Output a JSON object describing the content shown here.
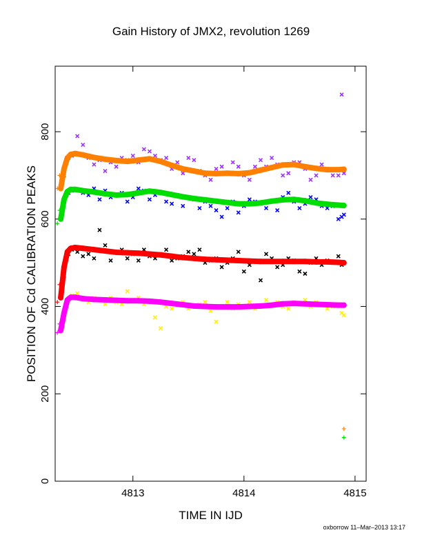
{
  "chart_data": {
    "type": "scatter",
    "title": "Gain History of JMX2, revolution 1269",
    "xlabel": "TIME IN IJD",
    "ylabel": "POSITION OF Cd CALIBRATION PEAKS",
    "xlim": [
      4812.3,
      4815.1
    ],
    "ylim": [
      0,
      950
    ],
    "x_ticks": [
      4813,
      4814,
      4815
    ],
    "y_ticks": [
      0,
      200,
      400,
      600,
      800
    ],
    "grid": false,
    "footer": "oxborrow 11–Mar–2013 13:17",
    "series": [
      {
        "marker": "x",
        "color": "#9933ff",
        "x": [
          4812.38,
          4812.42,
          4812.45,
          4812.5,
          4812.55,
          4812.6,
          4812.65,
          4812.7,
          4812.75,
          4812.8,
          4812.85,
          4812.9,
          4812.95,
          4813.0,
          4813.05,
          4813.1,
          4813.15,
          4813.2,
          4813.25,
          4813.3,
          4813.35,
          4813.4,
          4813.45,
          4813.5,
          4813.55,
          4813.6,
          4813.65,
          4813.7,
          4813.75,
          4813.8,
          4813.85,
          4813.9,
          4813.95,
          4814.0,
          4814.05,
          4814.1,
          4814.15,
          4814.2,
          4814.25,
          4814.3,
          4814.35,
          4814.4,
          4814.45,
          4814.5,
          4814.55,
          4814.6,
          4814.65,
          4814.7,
          4814.75,
          4814.8,
          4814.85,
          4814.88,
          4814.9
        ],
        "y": [
          700,
          740,
          745,
          790,
          770,
          740,
          725,
          735,
          710,
          730,
          720,
          740,
          735,
          745,
          730,
          760,
          755,
          745,
          735,
          740,
          715,
          730,
          705,
          740,
          735,
          710,
          700,
          690,
          715,
          720,
          705,
          730,
          720,
          700,
          690,
          720,
          735,
          720,
          740,
          725,
          700,
          705,
          730,
          730,
          715,
          690,
          700,
          725,
          715,
          700,
          700,
          885,
          705
        ]
      },
      {
        "marker": "x",
        "color": "#0000ff",
        "x": [
          4812.38,
          4812.42,
          4812.45,
          4812.5,
          4812.55,
          4812.6,
          4812.65,
          4812.7,
          4812.75,
          4812.8,
          4812.85,
          4812.9,
          4812.95,
          4813.0,
          4813.05,
          4813.1,
          4813.15,
          4813.2,
          4813.25,
          4813.3,
          4813.35,
          4813.4,
          4813.45,
          4813.5,
          4813.55,
          4813.6,
          4813.65,
          4813.7,
          4813.75,
          4813.8,
          4813.85,
          4813.9,
          4813.95,
          4814.0,
          4814.05,
          4814.1,
          4814.15,
          4814.2,
          4814.25,
          4814.3,
          4814.35,
          4814.4,
          4814.45,
          4814.5,
          4814.55,
          4814.6,
          4814.65,
          4814.7,
          4814.75,
          4814.8,
          4814.85,
          4814.88,
          4814.9
        ],
        "y": [
          640,
          660,
          665,
          668,
          660,
          655,
          670,
          645,
          665,
          650,
          655,
          660,
          640,
          650,
          670,
          665,
          645,
          655,
          660,
          640,
          635,
          655,
          630,
          650,
          645,
          625,
          640,
          630,
          620,
          605,
          625,
          640,
          615,
          630,
          645,
          640,
          635,
          625,
          640,
          620,
          650,
          660,
          640,
          625,
          635,
          650,
          645,
          630,
          625,
          630,
          600,
          605,
          610
        ]
      },
      {
        "marker": "x",
        "color": "#000000",
        "x": [
          4812.38,
          4812.42,
          4812.45,
          4812.5,
          4812.55,
          4812.6,
          4812.65,
          4812.7,
          4812.75,
          4812.8,
          4812.85,
          4812.9,
          4812.95,
          4813.0,
          4813.05,
          4813.1,
          4813.15,
          4813.2,
          4813.25,
          4813.3,
          4813.35,
          4813.4,
          4813.45,
          4813.5,
          4813.55,
          4813.6,
          4813.65,
          4813.7,
          4813.75,
          4813.8,
          4813.85,
          4813.9,
          4813.95,
          4814.0,
          4814.05,
          4814.1,
          4814.15,
          4814.2,
          4814.25,
          4814.3,
          4814.35,
          4814.4,
          4814.45,
          4814.5,
          4814.55,
          4814.6,
          4814.65,
          4814.7,
          4814.75,
          4814.8,
          4814.85,
          4814.88,
          4814.9
        ],
        "y": [
          470,
          520,
          530,
          525,
          515,
          520,
          510,
          575,
          540,
          505,
          525,
          530,
          510,
          520,
          505,
          530,
          515,
          510,
          520,
          530,
          505,
          510,
          515,
          525,
          520,
          530,
          500,
          505,
          510,
          490,
          500,
          510,
          525,
          480,
          495,
          505,
          460,
          520,
          510,
          490,
          495,
          510,
          505,
          480,
          475,
          500,
          510,
          495,
          505,
          500,
          515,
          495,
          500
        ]
      },
      {
        "marker": "x",
        "color": "#ffee00",
        "x": [
          4812.38,
          4812.42,
          4812.45,
          4812.5,
          4812.55,
          4812.6,
          4812.65,
          4812.7,
          4812.75,
          4812.8,
          4812.85,
          4812.9,
          4812.95,
          4813.0,
          4813.05,
          4813.1,
          4813.15,
          4813.2,
          4813.25,
          4813.3,
          4813.35,
          4813.4,
          4813.45,
          4813.5,
          4813.55,
          4813.6,
          4813.65,
          4813.7,
          4813.75,
          4813.8,
          4813.85,
          4813.9,
          4813.95,
          4814.0,
          4814.05,
          4814.1,
          4814.15,
          4814.2,
          4814.25,
          4814.3,
          4814.35,
          4814.4,
          4814.45,
          4814.5,
          4814.55,
          4814.6,
          4814.65,
          4814.7,
          4814.75,
          4814.8,
          4814.85,
          4814.88,
          4814.9
        ],
        "y": [
          380,
          420,
          425,
          430,
          415,
          410,
          420,
          415,
          405,
          420,
          410,
          405,
          435,
          415,
          420,
          405,
          410,
          375,
          350,
          400,
          395,
          405,
          410,
          395,
          400,
          405,
          410,
          390,
          365,
          400,
          410,
          395,
          405,
          400,
          410,
          395,
          400,
          415,
          405,
          410,
          400,
          395,
          410,
          405,
          415,
          400,
          410,
          405,
          395,
          400,
          405,
          385,
          380
        ]
      },
      {
        "marker": "o",
        "color": "#ff8000",
        "x": [
          4812.35,
          4812.38,
          4812.41,
          4812.44,
          4812.48,
          4812.55,
          4812.65,
          4812.75,
          4812.85,
          4812.95,
          4813.05,
          4813.15,
          4813.25,
          4813.35,
          4813.45,
          4813.55,
          4813.65,
          4813.75,
          4813.85,
          4813.95,
          4814.05,
          4814.15,
          4814.25,
          4814.35,
          4814.45,
          4814.55,
          4814.65,
          4814.75,
          4814.85,
          4814.9
        ],
        "y": [
          670,
          715,
          740,
          748,
          750,
          747,
          741,
          737,
          734,
          732,
          735,
          738,
          732,
          723,
          715,
          710,
          705,
          704,
          705,
          704,
          706,
          712,
          718,
          724,
          725,
          720,
          716,
          713,
          713,
          714
        ]
      },
      {
        "marker": "o",
        "color": "#00dd00",
        "x": [
          4812.35,
          4812.38,
          4812.41,
          4812.44,
          4812.48,
          4812.55,
          4812.65,
          4812.75,
          4812.85,
          4812.95,
          4813.05,
          4813.15,
          4813.25,
          4813.35,
          4813.45,
          4813.55,
          4813.65,
          4813.75,
          4813.85,
          4813.95,
          4814.05,
          4814.15,
          4814.25,
          4814.35,
          4814.45,
          4814.55,
          4814.65,
          4814.75,
          4814.85,
          4814.9
        ],
        "y": [
          600,
          645,
          663,
          668,
          668,
          665,
          662,
          658,
          655,
          656,
          660,
          664,
          661,
          656,
          651,
          647,
          644,
          641,
          638,
          635,
          635,
          637,
          641,
          644,
          645,
          642,
          637,
          634,
          632,
          631
        ]
      },
      {
        "marker": "o",
        "color": "#ff0000",
        "x": [
          4812.35,
          4812.38,
          4812.41,
          4812.44,
          4812.48,
          4812.55,
          4812.65,
          4812.75,
          4812.85,
          4812.95,
          4813.05,
          4813.15,
          4813.25,
          4813.35,
          4813.45,
          4813.55,
          4813.65,
          4813.75,
          4813.85,
          4813.95,
          4814.05,
          4814.15,
          4814.25,
          4814.35,
          4814.45,
          4814.55,
          4814.65,
          4814.75,
          4814.85,
          4814.9
        ],
        "y": [
          420,
          490,
          525,
          533,
          535,
          533,
          530,
          527,
          524,
          523,
          522,
          520,
          518,
          515,
          512,
          510,
          508,
          507,
          506,
          505,
          504,
          503,
          503,
          503,
          503,
          503,
          502,
          502,
          501,
          500
        ]
      },
      {
        "marker": "o",
        "color": "#ff00ff",
        "x": [
          4812.35,
          4812.38,
          4812.41,
          4812.44,
          4812.48,
          4812.55,
          4812.65,
          4812.75,
          4812.85,
          4812.95,
          4813.05,
          4813.15,
          4813.25,
          4813.35,
          4813.45,
          4813.55,
          4813.65,
          4813.75,
          4813.85,
          4813.95,
          4814.05,
          4814.15,
          4814.25,
          4814.35,
          4814.45,
          4814.55,
          4814.65,
          4814.75,
          4814.85,
          4814.9
        ],
        "y": [
          345,
          385,
          415,
          421,
          421,
          418,
          416,
          415,
          414,
          413,
          413,
          412,
          410,
          407,
          404,
          401,
          400,
          399,
          399,
          399,
          400,
          401,
          403,
          406,
          407,
          406,
          405,
          404,
          403,
          403
        ]
      },
      {
        "marker": "+",
        "color": "#ff8000",
        "x": [
          4812.32,
          4812.34,
          4814.9
        ],
        "y": [
          670,
          700,
          120
        ]
      },
      {
        "marker": "+",
        "color": "#00dd00",
        "x": [
          4812.32,
          4812.34,
          4814.9
        ],
        "y": [
          590,
          620,
          100
        ]
      },
      {
        "marker": "+",
        "color": "#ff0000",
        "x": [
          4812.32,
          4812.34
        ],
        "y": [
          410,
          450
        ]
      },
      {
        "marker": "+",
        "color": "#ff00ff",
        "x": [
          4812.32,
          4812.34
        ],
        "y": [
          340,
          360
        ]
      }
    ]
  }
}
